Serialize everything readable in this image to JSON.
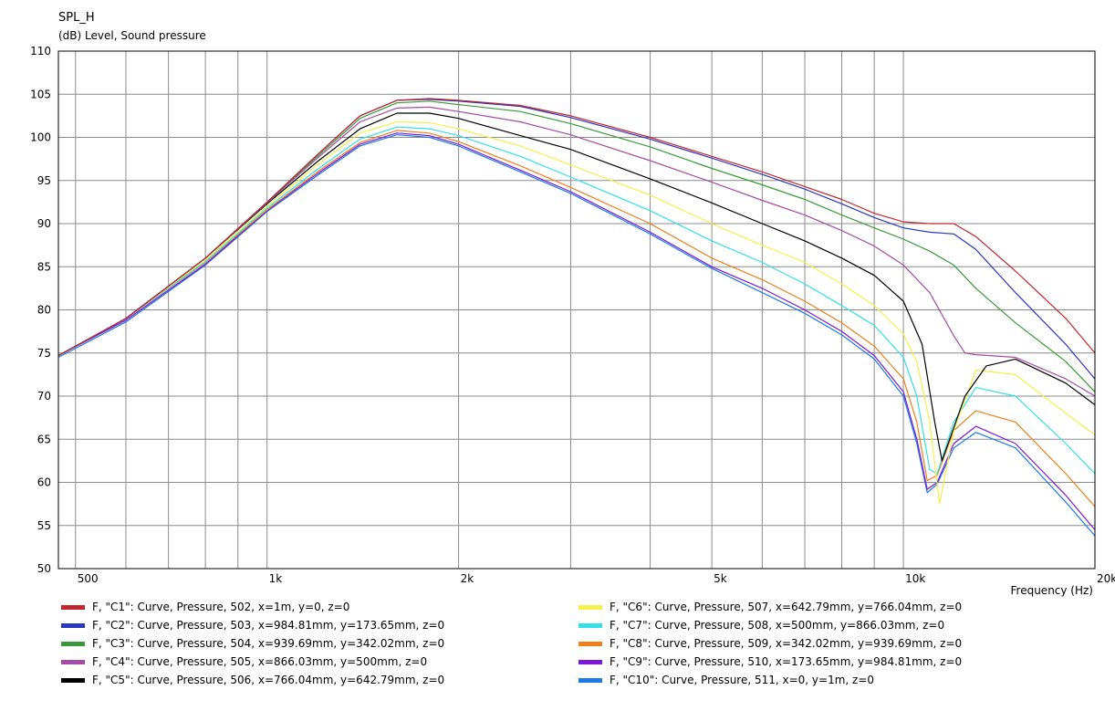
{
  "chart_data": {
    "type": "line",
    "title": "SPL_H",
    "ylabel": "(dB)  Level, Sound pressure",
    "xlabel": "Frequency  (Hz)",
    "xscale": "log",
    "xlim": [
      470,
      20000
    ],
    "ylim": [
      50,
      110
    ],
    "yticks": [
      50,
      55,
      60,
      65,
      70,
      75,
      80,
      85,
      90,
      95,
      100,
      105,
      110
    ],
    "xtick_labels": [
      {
        "value": 500,
        "label": "500"
      },
      {
        "value": 1000,
        "label": "1k"
      },
      {
        "value": 2000,
        "label": "2k"
      },
      {
        "value": 5000,
        "label": "5k"
      },
      {
        "value": 10000,
        "label": "10k"
      },
      {
        "value": 20000,
        "label": "20k"
      }
    ],
    "grid": true,
    "legend_position": "bottom",
    "series": [
      {
        "name": "F, \"C1\": Curve, Pressure, 502, x=1m, y=0, z=0",
        "color": "#c0282d",
        "points": [
          [
            470,
            74.7
          ],
          [
            600,
            79
          ],
          [
            800,
            86
          ],
          [
            1000,
            92.5
          ],
          [
            1200,
            98
          ],
          [
            1400,
            102.5
          ],
          [
            1600,
            104.3
          ],
          [
            1800,
            104.5
          ],
          [
            2000,
            104.3
          ],
          [
            2500,
            103.7
          ],
          [
            3000,
            102.5
          ],
          [
            4000,
            100
          ],
          [
            5000,
            97.8
          ],
          [
            6000,
            96
          ],
          [
            7000,
            94.3
          ],
          [
            8000,
            92.8
          ],
          [
            9000,
            91.2
          ],
          [
            10000,
            90.2
          ],
          [
            11000,
            90
          ],
          [
            12000,
            90
          ],
          [
            13000,
            88.5
          ],
          [
            15000,
            84.5
          ],
          [
            18000,
            79
          ],
          [
            20000,
            75
          ]
        ]
      },
      {
        "name": "F, \"C2\": Curve, Pressure, 503, x=984.81mm, y=173.65mm, z=0",
        "color": "#2a35c0",
        "points": [
          [
            470,
            74.7
          ],
          [
            600,
            79
          ],
          [
            800,
            86
          ],
          [
            1000,
            92.5
          ],
          [
            1200,
            98
          ],
          [
            1400,
            102.5
          ],
          [
            1600,
            104.3
          ],
          [
            1800,
            104.4
          ],
          [
            2000,
            104.2
          ],
          [
            2500,
            103.6
          ],
          [
            3000,
            102.3
          ],
          [
            4000,
            99.8
          ],
          [
            5000,
            97.6
          ],
          [
            6000,
            95.7
          ],
          [
            7000,
            94
          ],
          [
            8000,
            92.3
          ],
          [
            9000,
            90.7
          ],
          [
            10000,
            89.5
          ],
          [
            11000,
            89
          ],
          [
            12000,
            88.8
          ],
          [
            13000,
            87
          ],
          [
            15000,
            82
          ],
          [
            18000,
            76
          ],
          [
            20000,
            72
          ]
        ]
      },
      {
        "name": "F, \"C3\": Curve, Pressure, 504, x=939.69mm, y=342.02mm, z=0",
        "color": "#3a9a3a",
        "points": [
          [
            470,
            74.7
          ],
          [
            600,
            79
          ],
          [
            800,
            86
          ],
          [
            1000,
            92.5
          ],
          [
            1200,
            97.8
          ],
          [
            1400,
            102.2
          ],
          [
            1600,
            104
          ],
          [
            1800,
            104.2
          ],
          [
            2000,
            103.8
          ],
          [
            2500,
            103
          ],
          [
            3000,
            101.6
          ],
          [
            4000,
            98.9
          ],
          [
            5000,
            96.4
          ],
          [
            6000,
            94.5
          ],
          [
            7000,
            92.8
          ],
          [
            8000,
            91
          ],
          [
            9000,
            89.5
          ],
          [
            10000,
            88.2
          ],
          [
            11000,
            86.8
          ],
          [
            12000,
            85.2
          ],
          [
            13000,
            82.5
          ],
          [
            15000,
            78.5
          ],
          [
            18000,
            74
          ],
          [
            20000,
            70.5
          ]
        ]
      },
      {
        "name": "F, \"C4\": Curve, Pressure, 505, x=866.03mm, y=500mm, z=0",
        "color": "#a64ba6",
        "points": [
          [
            470,
            74.7
          ],
          [
            600,
            79
          ],
          [
            800,
            86
          ],
          [
            1000,
            92.4
          ],
          [
            1200,
            97.6
          ],
          [
            1400,
            101.8
          ],
          [
            1600,
            103.4
          ],
          [
            1800,
            103.5
          ],
          [
            2000,
            103
          ],
          [
            2500,
            101.8
          ],
          [
            3000,
            100.3
          ],
          [
            4000,
            97.3
          ],
          [
            5000,
            94.8
          ],
          [
            6000,
            92.7
          ],
          [
            7000,
            91
          ],
          [
            8000,
            89.2
          ],
          [
            9000,
            87.4
          ],
          [
            10000,
            85.2
          ],
          [
            11000,
            82
          ],
          [
            12000,
            77
          ],
          [
            12500,
            75
          ],
          [
            13000,
            74.8
          ],
          [
            15000,
            74.5
          ],
          [
            18000,
            72
          ],
          [
            20000,
            70
          ]
        ]
      },
      {
        "name": "F, \"C5\": Curve, Pressure, 506, x=766.04mm, y=642.79mm, z=0",
        "color": "#000000",
        "points": [
          [
            470,
            74.7
          ],
          [
            600,
            79
          ],
          [
            800,
            86
          ],
          [
            1000,
            92.3
          ],
          [
            1200,
            97.2
          ],
          [
            1400,
            101
          ],
          [
            1600,
            102.8
          ],
          [
            1800,
            102.8
          ],
          [
            2000,
            102.2
          ],
          [
            2500,
            100.2
          ],
          [
            3000,
            98.6
          ],
          [
            4000,
            95.2
          ],
          [
            5000,
            92.4
          ],
          [
            6000,
            90
          ],
          [
            7000,
            88
          ],
          [
            8000,
            86
          ],
          [
            9000,
            84
          ],
          [
            10000,
            81
          ],
          [
            10700,
            76
          ],
          [
            11200,
            67
          ],
          [
            11500,
            62.5
          ],
          [
            12500,
            70
          ],
          [
            13500,
            73.5
          ],
          [
            15000,
            74.3
          ],
          [
            18000,
            71.5
          ],
          [
            20000,
            69
          ]
        ]
      },
      {
        "name": "F, \"C6\": Curve, Pressure, 507, x=642.79mm, y=766.04mm, z=0",
        "color": "#f5f04a",
        "points": [
          [
            470,
            74.7
          ],
          [
            600,
            79
          ],
          [
            800,
            85.8
          ],
          [
            1000,
            92
          ],
          [
            1200,
            96.8
          ],
          [
            1400,
            100.5
          ],
          [
            1600,
            101.8
          ],
          [
            1800,
            101.7
          ],
          [
            2000,
            101
          ],
          [
            2500,
            99
          ],
          [
            3000,
            96.8
          ],
          [
            4000,
            93.3
          ],
          [
            5000,
            90
          ],
          [
            6000,
            87.5
          ],
          [
            7000,
            85.5
          ],
          [
            8000,
            83
          ],
          [
            9000,
            80.5
          ],
          [
            10000,
            77.2
          ],
          [
            10500,
            74
          ],
          [
            11000,
            67
          ],
          [
            11400,
            57.5
          ],
          [
            12000,
            66
          ],
          [
            13000,
            73
          ],
          [
            15000,
            72.5
          ],
          [
            18000,
            68
          ],
          [
            20000,
            65.5
          ]
        ]
      },
      {
        "name": "F, \"C7\": Curve, Pressure, 508, x=500mm, y=866.03mm, z=0",
        "color": "#33e0e6",
        "points": [
          [
            470,
            74.7
          ],
          [
            600,
            79
          ],
          [
            800,
            85.6
          ],
          [
            1000,
            91.8
          ],
          [
            1200,
            96.3
          ],
          [
            1400,
            99.8
          ],
          [
            1600,
            101.2
          ],
          [
            1800,
            101
          ],
          [
            2000,
            100.2
          ],
          [
            2500,
            97.8
          ],
          [
            3000,
            95.4
          ],
          [
            4000,
            91.5
          ],
          [
            5000,
            88
          ],
          [
            6000,
            85.5
          ],
          [
            7000,
            83
          ],
          [
            8000,
            80.5
          ],
          [
            9000,
            78.2
          ],
          [
            10000,
            74.5
          ],
          [
            10500,
            70
          ],
          [
            11000,
            61.5
          ],
          [
            11300,
            61
          ],
          [
            12000,
            67
          ],
          [
            13000,
            71
          ],
          [
            15000,
            70
          ],
          [
            18000,
            64.5
          ],
          [
            20000,
            61
          ]
        ]
      },
      {
        "name": "F, \"C8\": Curve, Pressure, 509, x=342.02mm, y=939.69mm, z=0",
        "color": "#f07e1a",
        "points": [
          [
            470,
            74.7
          ],
          [
            600,
            79
          ],
          [
            800,
            85.5
          ],
          [
            1000,
            91.6
          ],
          [
            1200,
            96
          ],
          [
            1400,
            99.4
          ],
          [
            1600,
            100.8
          ],
          [
            1800,
            100.5
          ],
          [
            2000,
            99.5
          ],
          [
            2500,
            96.7
          ],
          [
            3000,
            94.2
          ],
          [
            4000,
            90
          ],
          [
            5000,
            86
          ],
          [
            6000,
            83.5
          ],
          [
            7000,
            81
          ],
          [
            8000,
            78.5
          ],
          [
            9000,
            75.8
          ],
          [
            10000,
            72
          ],
          [
            10500,
            67
          ],
          [
            10900,
            60.2
          ],
          [
            11300,
            60.8
          ],
          [
            12000,
            66
          ],
          [
            13000,
            68.3
          ],
          [
            15000,
            67
          ],
          [
            18000,
            61
          ],
          [
            20000,
            57.2
          ]
        ]
      },
      {
        "name": "F, \"C9\": Curve, Pressure, 510, x=173.65mm, y=984.81mm, z=0",
        "color": "#7a1ad6",
        "points": [
          [
            470,
            74.7
          ],
          [
            600,
            78.8
          ],
          [
            800,
            85.3
          ],
          [
            1000,
            91.5
          ],
          [
            1200,
            95.8
          ],
          [
            1400,
            99.2
          ],
          [
            1600,
            100.5
          ],
          [
            1800,
            100.2
          ],
          [
            2000,
            99.2
          ],
          [
            2500,
            96.2
          ],
          [
            3000,
            93.7
          ],
          [
            4000,
            89
          ],
          [
            5000,
            85
          ],
          [
            6000,
            82.5
          ],
          [
            7000,
            80
          ],
          [
            8000,
            77.5
          ],
          [
            9000,
            74.7
          ],
          [
            10000,
            70.5
          ],
          [
            10500,
            65
          ],
          [
            10900,
            59.2
          ],
          [
            11300,
            60
          ],
          [
            12000,
            64.5
          ],
          [
            13000,
            66.5
          ],
          [
            15000,
            64.5
          ],
          [
            18000,
            58.5
          ],
          [
            20000,
            54.5
          ]
        ]
      },
      {
        "name": "F, \"C10\": Curve, Pressure, 511, x=0, y=1m, z=0",
        "color": "#1e7ae6",
        "points": [
          [
            470,
            74.5
          ],
          [
            600,
            78.6
          ],
          [
            800,
            85.2
          ],
          [
            1000,
            91.4
          ],
          [
            1200,
            95.6
          ],
          [
            1400,
            99
          ],
          [
            1600,
            100.3
          ],
          [
            1800,
            100
          ],
          [
            2000,
            99
          ],
          [
            2500,
            96
          ],
          [
            3000,
            93.5
          ],
          [
            4000,
            88.8
          ],
          [
            5000,
            84.8
          ],
          [
            6000,
            82
          ],
          [
            7000,
            79.6
          ],
          [
            8000,
            77.1
          ],
          [
            9000,
            74.3
          ],
          [
            10000,
            70
          ],
          [
            10500,
            64.5
          ],
          [
            10900,
            58.8
          ],
          [
            11300,
            59.8
          ],
          [
            12000,
            64
          ],
          [
            13000,
            65.8
          ],
          [
            15000,
            64
          ],
          [
            18000,
            57.7
          ],
          [
            20000,
            53.8
          ]
        ]
      }
    ]
  }
}
